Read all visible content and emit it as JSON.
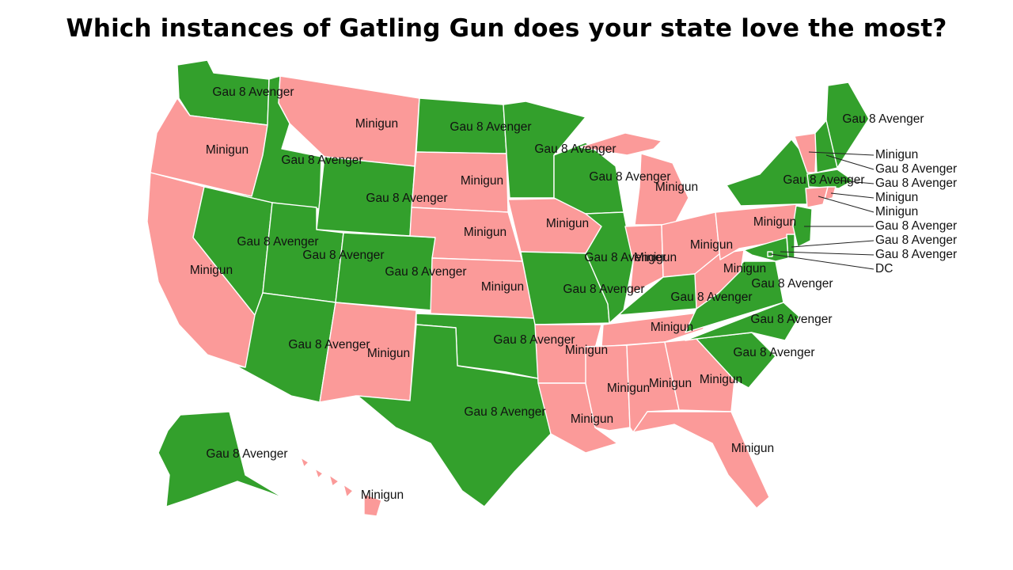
{
  "title": "Which instances of Gatling Gun does your state love the most?",
  "colors": {
    "Gau 8 Avenger": "#33a02c",
    "Minigun": "#fb9a99"
  },
  "states": [
    {
      "id": "WA",
      "choice": "Gau 8 Avenger"
    },
    {
      "id": "OR",
      "choice": "Minigun"
    },
    {
      "id": "CA",
      "choice": "Minigun"
    },
    {
      "id": "ID",
      "choice": "Gau 8 Avenger"
    },
    {
      "id": "NV",
      "choice": "Gau 8 Avenger"
    },
    {
      "id": "MT",
      "choice": "Minigun"
    },
    {
      "id": "WY",
      "choice": "Gau 8 Avenger"
    },
    {
      "id": "UT",
      "choice": "Gau 8 Avenger"
    },
    {
      "id": "AZ",
      "choice": "Gau 8 Avenger"
    },
    {
      "id": "CO",
      "choice": "Gau 8 Avenger"
    },
    {
      "id": "NM",
      "choice": "Minigun"
    },
    {
      "id": "ND",
      "choice": "Gau 8 Avenger"
    },
    {
      "id": "SD",
      "choice": "Minigun"
    },
    {
      "id": "NE",
      "choice": "Minigun"
    },
    {
      "id": "KS",
      "choice": "Minigun"
    },
    {
      "id": "OK",
      "choice": "Gau 8 Avenger"
    },
    {
      "id": "TX",
      "choice": "Gau 8 Avenger"
    },
    {
      "id": "MN",
      "choice": "Gau 8 Avenger"
    },
    {
      "id": "IA",
      "choice": "Minigun"
    },
    {
      "id": "MO",
      "choice": "Gau 8 Avenger"
    },
    {
      "id": "AR",
      "choice": "Minigun"
    },
    {
      "id": "LA",
      "choice": "Minigun"
    },
    {
      "id": "WI",
      "choice": "Gau 8 Avenger"
    },
    {
      "id": "IL",
      "choice": "Gau 8 Avenger"
    },
    {
      "id": "MI",
      "choice": "Minigun"
    },
    {
      "id": "IN",
      "choice": "Minigun"
    },
    {
      "id": "OH",
      "choice": "Minigun"
    },
    {
      "id": "KY",
      "choice": "Gau 8 Avenger"
    },
    {
      "id": "TN",
      "choice": "Minigun"
    },
    {
      "id": "MS",
      "choice": "Minigun"
    },
    {
      "id": "AL",
      "choice": "Minigun"
    },
    {
      "id": "GA",
      "choice": "Minigun"
    },
    {
      "id": "FL",
      "choice": "Minigun"
    },
    {
      "id": "SC",
      "choice": "Gau 8 Avenger"
    },
    {
      "id": "NC",
      "choice": "Gau 8 Avenger"
    },
    {
      "id": "VA",
      "choice": "Gau 8 Avenger"
    },
    {
      "id": "WV",
      "choice": "Minigun"
    },
    {
      "id": "PA",
      "choice": "Minigun"
    },
    {
      "id": "NY",
      "choice": "Gau 8 Avenger"
    },
    {
      "id": "ME",
      "choice": "Gau 8 Avenger"
    },
    {
      "id": "VT",
      "choice": "Minigun"
    },
    {
      "id": "NH",
      "choice": "Gau 8 Avenger"
    },
    {
      "id": "MA",
      "choice": "Gau 8 Avenger"
    },
    {
      "id": "RI",
      "choice": "Minigun"
    },
    {
      "id": "CT",
      "choice": "Minigun"
    },
    {
      "id": "NJ",
      "choice": "Gau 8 Avenger"
    },
    {
      "id": "DE",
      "choice": "Gau 8 Avenger"
    },
    {
      "id": "MD",
      "choice": "Gau 8 Avenger"
    },
    {
      "id": "DC",
      "choice": "Gau 8 Avenger"
    },
    {
      "id": "AK",
      "choice": "Gau 8 Avenger"
    },
    {
      "id": "HI",
      "choice": "Minigun"
    }
  ],
  "callouts": [
    {
      "state": "VT",
      "text": "Minigun"
    },
    {
      "state": "NH",
      "text": "Gau 8 Avenger"
    },
    {
      "state": "MA",
      "text": "Gau 8 Avenger"
    },
    {
      "state": "RI",
      "text": "Minigun"
    },
    {
      "state": "CT",
      "text": "Minigun"
    },
    {
      "state": "NJ",
      "text": "Gau 8 Avenger"
    },
    {
      "state": "DE",
      "text": "Gau 8 Avenger"
    },
    {
      "state": "MD",
      "text": "Gau 8 Avenger"
    },
    {
      "state": "DC",
      "text": "DC"
    }
  ]
}
